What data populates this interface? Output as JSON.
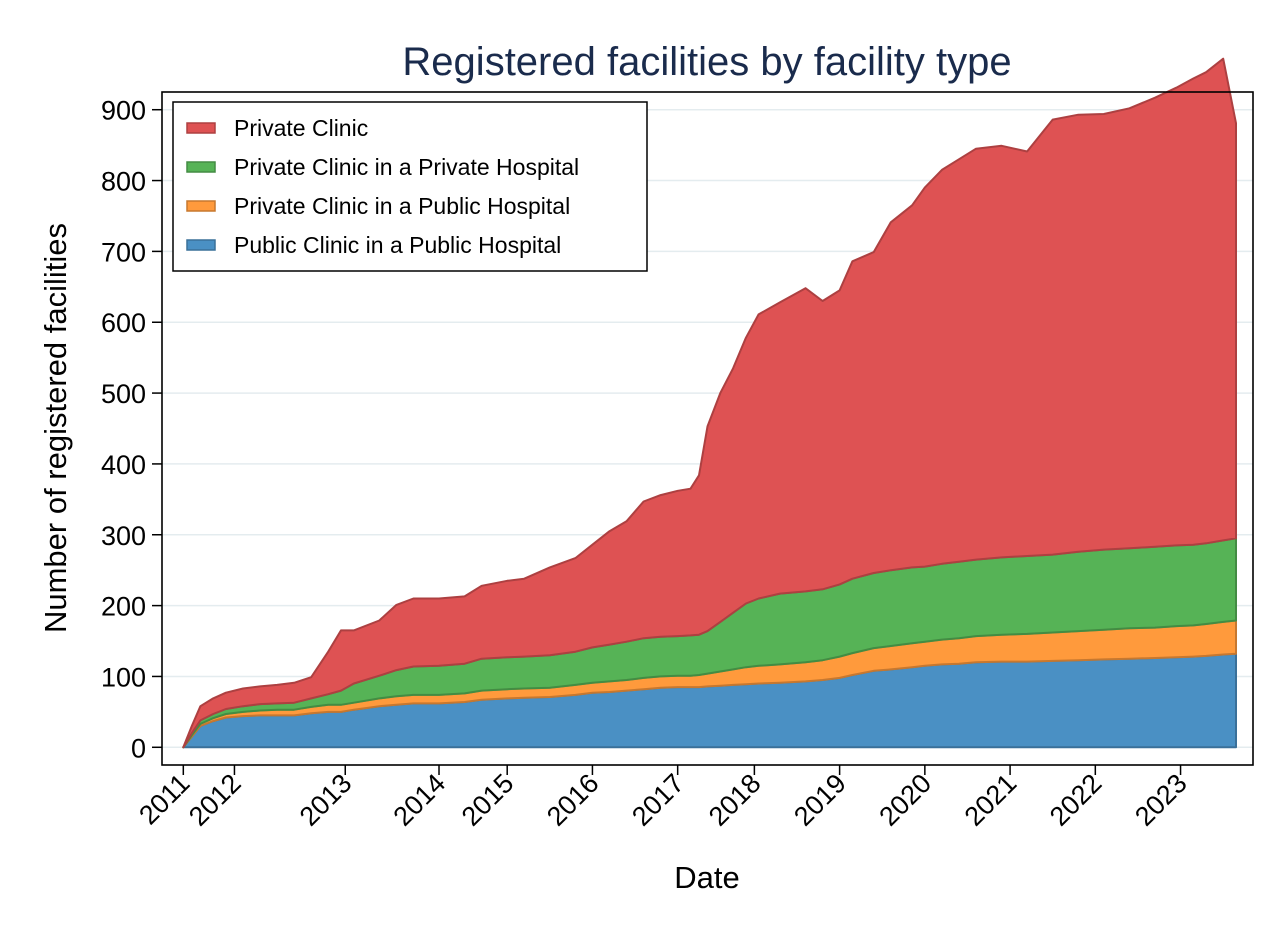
{
  "chart_data": {
    "type": "area",
    "stacked": true,
    "title": "Registered facilities by facility type",
    "xlabel": "Date",
    "ylabel": "Number of registered facilities",
    "xlim": [
      2010.75,
      2023.55
    ],
    "ylim": [
      -25,
      925
    ],
    "y_ticks": [
      0,
      100,
      200,
      300,
      400,
      500,
      600,
      700,
      800,
      900
    ],
    "x_ticks": [
      {
        "label": "2011",
        "value": 2011.0
      },
      {
        "label": "2012",
        "value": 2011.6
      },
      {
        "label": "2013",
        "value": 2012.9
      },
      {
        "label": "2014",
        "value": 2014.0
      },
      {
        "label": "2015",
        "value": 2014.8
      },
      {
        "label": "2016",
        "value": 2015.8
      },
      {
        "label": "2017",
        "value": 2016.8
      },
      {
        "label": "2018",
        "value": 2017.7
      },
      {
        "label": "2019",
        "value": 2018.7
      },
      {
        "label": "2020",
        "value": 2019.7
      },
      {
        "label": "2021",
        "value": 2020.7
      },
      {
        "label": "2022",
        "value": 2021.7
      },
      {
        "label": "2023",
        "value": 2022.7
      }
    ],
    "grid": true,
    "legend_position": "top-left",
    "x": [
      2011.0,
      2011.1,
      2011.2,
      2011.35,
      2011.5,
      2011.7,
      2011.9,
      2012.1,
      2012.3,
      2012.5,
      2012.7,
      2012.85,
      2013.0,
      2013.3,
      2013.5,
      2013.7,
      2014.0,
      2014.3,
      2014.5,
      2014.8,
      2015.0,
      2015.3,
      2015.6,
      2015.8,
      2016.0,
      2016.2,
      2016.4,
      2016.6,
      2016.8,
      2016.95,
      2017.05,
      2017.15,
      2017.3,
      2017.45,
      2017.6,
      2017.75,
      2018.0,
      2018.3,
      2018.5,
      2018.7,
      2018.85,
      2019.1,
      2019.3,
      2019.55,
      2019.7,
      2019.9,
      2020.1,
      2020.3,
      2020.6,
      2020.9,
      2021.2,
      2021.5,
      2021.8,
      2022.1,
      2022.4,
      2022.65,
      2022.85,
      2023.0,
      2023.2,
      2023.35
    ],
    "series": [
      {
        "name": "Public Clinic in a Public Hospital",
        "color": "#4a90c4",
        "values": [
          0,
          15,
          30,
          37,
          42,
          44,
          45,
          45,
          45,
          48,
          50,
          50,
          53,
          58,
          60,
          62,
          62,
          64,
          67,
          69,
          70,
          71,
          74,
          77,
          78,
          80,
          82,
          84,
          85,
          85,
          85,
          86,
          87,
          88,
          89,
          90,
          91,
          93,
          95,
          98,
          102,
          108,
          110,
          113,
          115,
          117,
          118,
          120,
          121,
          121,
          122,
          123,
          124,
          125,
          126,
          127,
          128,
          129,
          131,
          132
        ]
      },
      {
        "name": "Private Clinic in a Public Hospital",
        "color": "#ff9a3c",
        "values": [
          0,
          2,
          3,
          4,
          5,
          6,
          7,
          8,
          8,
          9,
          10,
          10,
          10,
          11,
          12,
          12,
          12,
          12,
          13,
          13,
          13,
          13,
          14,
          14,
          15,
          15,
          16,
          16,
          16,
          16,
          17,
          18,
          20,
          22,
          24,
          25,
          26,
          27,
          28,
          30,
          31,
          32,
          33,
          34,
          34,
          35,
          36,
          37,
          38,
          39,
          40,
          41,
          42,
          43,
          43,
          44,
          44,
          45,
          46,
          47
        ]
      },
      {
        "name": "Private Clinic in a Private Hospital",
        "color": "#56b356",
        "values": [
          0,
          3,
          5,
          6,
          7,
          8,
          9,
          9,
          10,
          12,
          15,
          20,
          27,
          32,
          37,
          40,
          41,
          42,
          45,
          45,
          45,
          46,
          47,
          50,
          52,
          54,
          56,
          56,
          56,
          57,
          57,
          60,
          70,
          80,
          90,
          95,
          100,
          100,
          100,
          102,
          105,
          106,
          107,
          107,
          106,
          107,
          108,
          108,
          109,
          110,
          110,
          112,
          113,
          113,
          114,
          114,
          114,
          114,
          115,
          116
        ]
      },
      {
        "name": "Private Clinic",
        "color": "#de5253",
        "values": [
          0,
          10,
          20,
          22,
          23,
          25,
          25,
          26,
          28,
          30,
          60,
          85,
          75,
          78,
          92,
          96,
          95,
          95,
          103,
          108,
          110,
          124,
          132,
          145,
          160,
          170,
          193,
          200,
          205,
          207,
          225,
          289,
          323,
          345,
          375,
          401,
          411,
          428,
          407,
          415,
          448,
          453,
          491,
          511,
          535,
          556,
          568,
          580,
          581,
          571,
          614,
          617,
          615,
          621,
          634,
          646,
          658,
          665,
          680,
          586
        ]
      }
    ]
  }
}
